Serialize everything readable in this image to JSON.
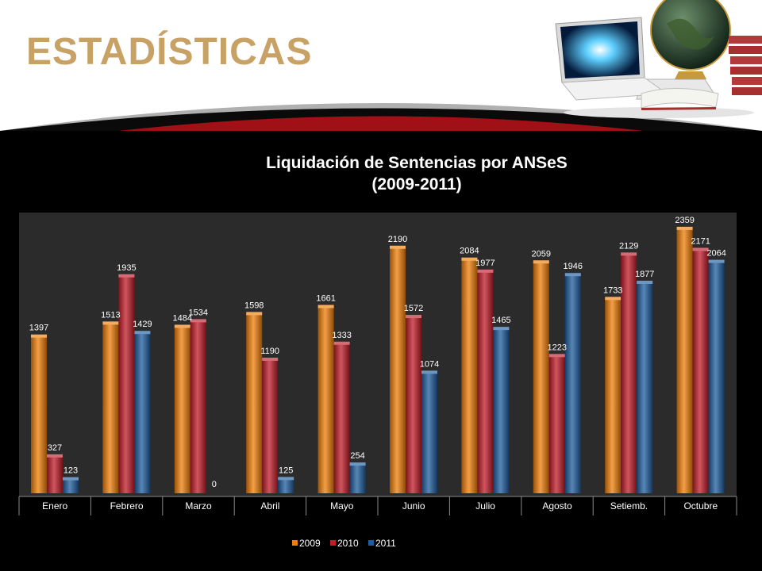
{
  "header": {
    "title": "ESTADÍSTICAS"
  },
  "decoration": {
    "image_icon": "laptop-globe-books-icon"
  },
  "colors": {
    "title_gold": "#c8a165",
    "band_red": "#a10f17",
    "panel_gray": "#2b2b2b"
  },
  "chart_data": {
    "type": "bar",
    "title": "Liquidación de Sentencias por ANSeS",
    "subtitle": "(2009-2011)",
    "categories": [
      "Enero",
      "Febrero",
      "Marzo",
      "Abril",
      "Mayo",
      "Junio",
      "Julio",
      "Agosto",
      "Setiemb.",
      "Octubre"
    ],
    "series": [
      {
        "name": "2009",
        "color": "#f07f0a",
        "values": [
          1397,
          1513,
          1484,
          1598,
          1661,
          2190,
          2084,
          2059,
          1733,
          2359
        ]
      },
      {
        "name": "2010",
        "color": "#c01c2a",
        "values": [
          327,
          1935,
          1534,
          1190,
          1333,
          1572,
          1977,
          1223,
          2129,
          2171
        ]
      },
      {
        "name": "2011",
        "color": "#1f5e9e",
        "values": [
          123,
          1429,
          0,
          125,
          254,
          1074,
          1465,
          1946,
          1877,
          2064
        ]
      }
    ],
    "ylim": [
      0,
      2400
    ],
    "legend_position": "bottom",
    "grid": false
  }
}
